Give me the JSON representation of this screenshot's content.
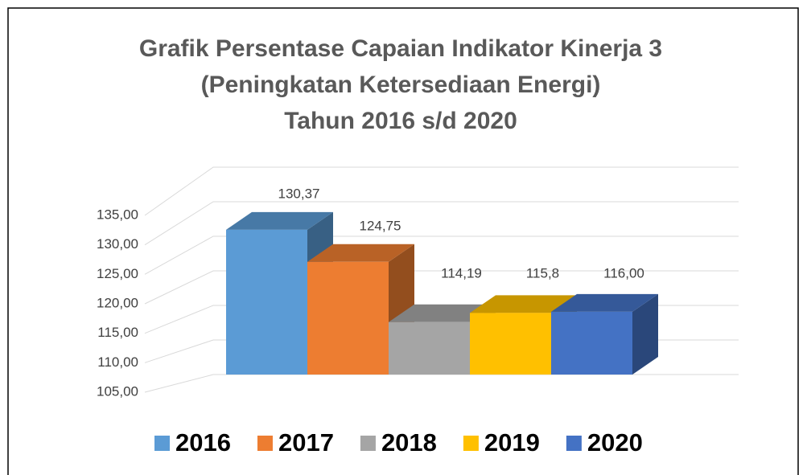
{
  "chart_data": {
    "type": "bar3d",
    "title": [
      "Grafik Persentase Capaian Indikator Kinerja 3",
      "(Peningkatan Ketersediaan Energi)",
      "Tahun 2016 s/d 2020"
    ],
    "series": [
      {
        "name": "2016",
        "color": "#5b9bd5",
        "values": [
          130.37
        ],
        "value_labels": [
          "130,37"
        ]
      },
      {
        "name": "2017",
        "color": "#ed7d31",
        "values": [
          124.75
        ],
        "value_labels": [
          "124,75"
        ]
      },
      {
        "name": "2018",
        "color": "#a5a5a5",
        "values": [
          114.19
        ],
        "value_labels": [
          "114,19"
        ]
      },
      {
        "name": "2019",
        "color": "#ffc000",
        "values": [
          115.8
        ],
        "value_labels": [
          "115,8"
        ]
      },
      {
        "name": "2020",
        "color": "#4472c4",
        "values": [
          116.0
        ],
        "value_labels": [
          "116,00"
        ]
      }
    ],
    "ylim": [
      105,
      135
    ],
    "yticks": [
      {
        "value": 105,
        "label": "105,00"
      },
      {
        "value": 110,
        "label": "110,00"
      },
      {
        "value": 115,
        "label": "115,00"
      },
      {
        "value": 120,
        "label": "120,00"
      },
      {
        "value": 125,
        "label": "125,00"
      },
      {
        "value": 130,
        "label": "130,00"
      },
      {
        "value": 135,
        "label": "135,00"
      }
    ],
    "grid": true,
    "legend": "bottom"
  }
}
